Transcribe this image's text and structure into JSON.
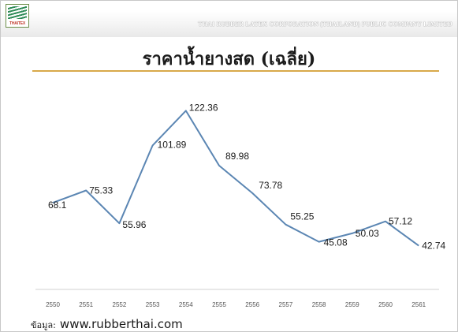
{
  "header": {
    "logo_text": "THAITEX",
    "company": "THAI RUBBER LATEX CORPORATION (THAILAND) PUBLIC COMPANY LIMITED"
  },
  "footer": {
    "source_label": "ข้อมูล:",
    "source_url": "www.rubberthai.com"
  },
  "colors": {
    "line": "#5b86b3",
    "title_rule": "#d8a94a",
    "axis": "#d0d0d0"
  },
  "chart_data": {
    "type": "line",
    "title": "ราคาน้ำยางสด (เฉลี่ย)",
    "xlabel": "",
    "ylabel": "",
    "categories": [
      "2550",
      "2551",
      "2552",
      "2553",
      "2554",
      "2555",
      "2556",
      "2557",
      "2558",
      "2559",
      "2560",
      "2561"
    ],
    "values": [
      68.1,
      75.33,
      55.96,
      101.89,
      122.36,
      89.98,
      73.78,
      55.25,
      45.08,
      50.03,
      57.12,
      42.74
    ],
    "labels": [
      "68.1",
      "75.33",
      "55.96",
      "101.89",
      "122.36",
      "89.98",
      "73.78",
      "55.25",
      "45.08",
      "50.03",
      "57.12",
      "42.74"
    ],
    "grid": false,
    "legend": "none"
  }
}
